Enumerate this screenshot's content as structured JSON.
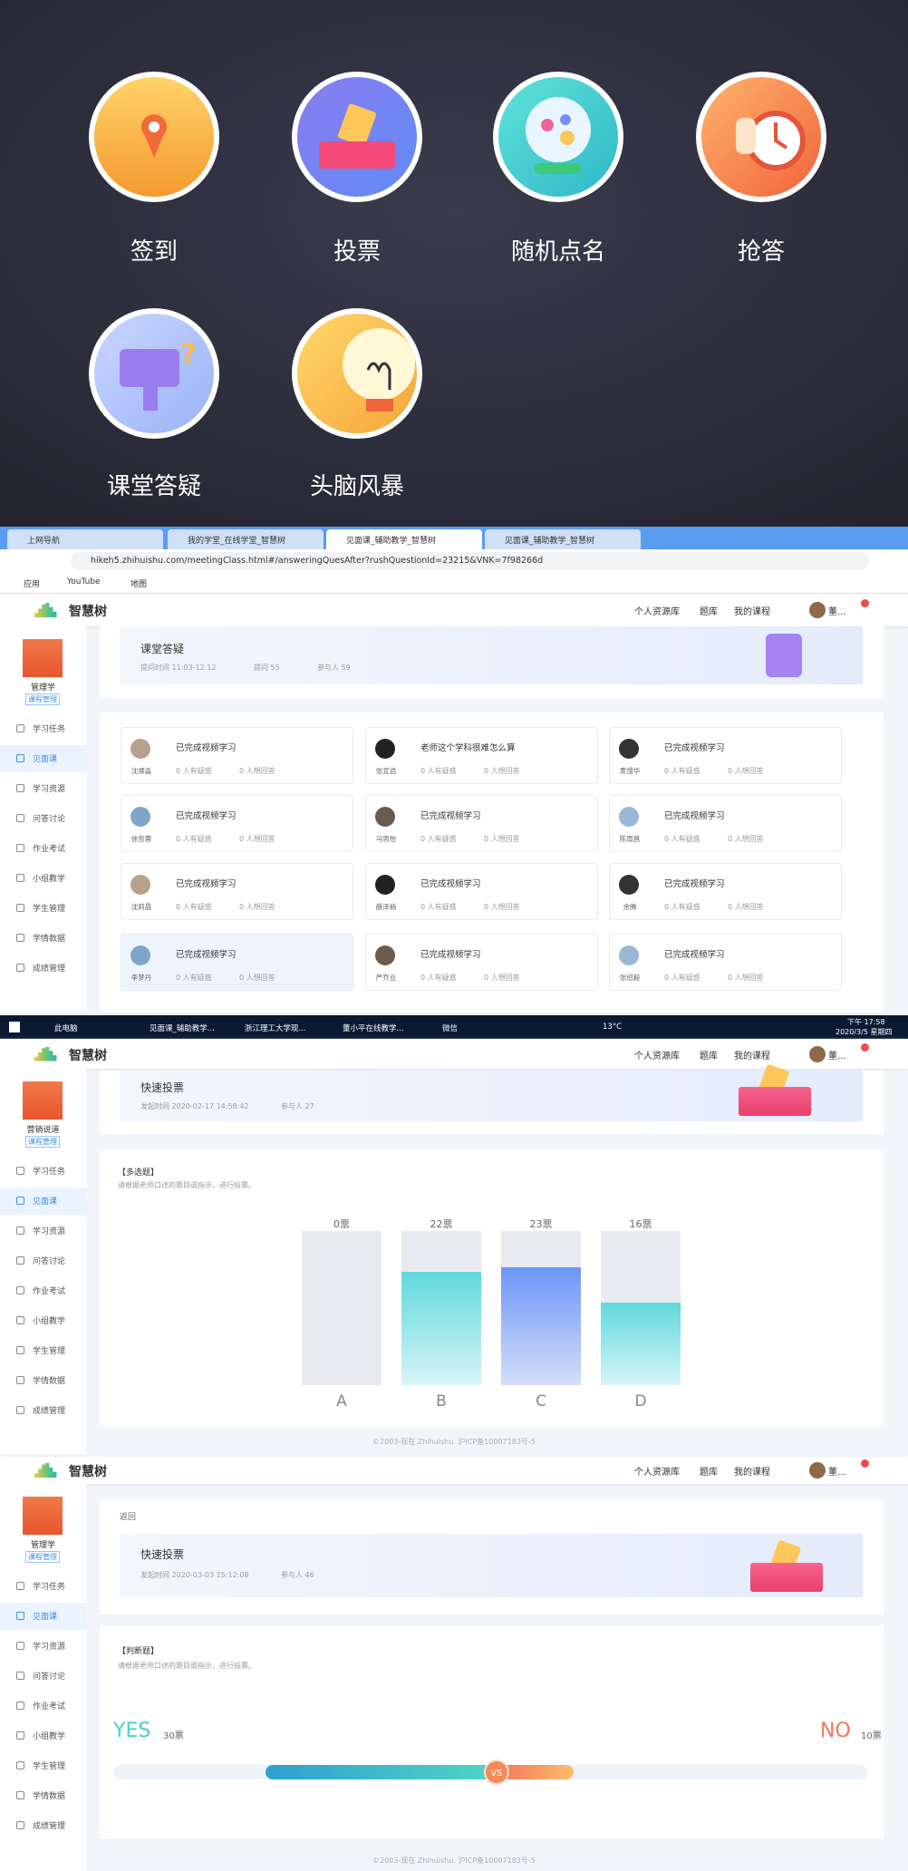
{
  "launcher": {
    "items": [
      "签到",
      "投票",
      "随机点名",
      "抢答",
      "课堂答疑",
      "头脑风暴"
    ]
  },
  "browser": {
    "tabs": [
      "上网导航",
      "我的学堂_在线学堂_智慧树",
      "见面课_辅助教学_智慧树",
      "见面课_辅助教学_智慧树"
    ],
    "url": "hikeh5.zhihuishu.com/meetingClass.html#/answeringQuesAfter?rushQuestionId=23215&VNK=7f98266d",
    "bookmarks": [
      "应用",
      "YouTube",
      "地图"
    ]
  },
  "header": {
    "logo": "智慧树",
    "nav": [
      "个人资源库",
      "题库",
      "我的课程"
    ],
    "user": "董..."
  },
  "sidebar_menu": [
    "学习任务",
    "见面课",
    "学习资源",
    "问答讨论",
    "作业考试",
    "小组教学",
    "学生管理",
    "学情数据",
    "成绩管理"
  ],
  "qa": {
    "course": "管理学",
    "tag": "课程管理",
    "title": "课堂答疑",
    "time": "提问时间   11:03-12:12",
    "asks": "提问 55",
    "people": "参与人 59",
    "stats": [
      "0 人有疑惑",
      "0 人想回答"
    ],
    "cards": [
      {
        "text": "已完成视频学习",
        "name": "沈顺淼"
      },
      {
        "text": "老师这个学科很难怎么算",
        "name": "张宣逍"
      },
      {
        "text": "已完成视频学习",
        "name": "黄馒华"
      },
      {
        "text": "已完成视频学习",
        "name": "徐哲蓉"
      },
      {
        "text": "已完成视频学习",
        "name": "马思怡"
      },
      {
        "text": "已完成视频学习",
        "name": "陈周昌"
      },
      {
        "text": "已完成视频学习",
        "name": "沈莉晨"
      },
      {
        "text": "已完成视频学习",
        "name": "薛泽楠"
      },
      {
        "text": "已完成视频学习",
        "name": "余腾"
      },
      {
        "text": "已完成视频学习",
        "name": "李梦丹"
      },
      {
        "text": "已完成视频学习",
        "name": "严乔业"
      },
      {
        "text": "已完成视频学习",
        "name": "张绍毅"
      }
    ]
  },
  "taskbar": {
    "items": [
      "此电脑",
      "见面课_辅助教学...",
      "浙江理工大学现...",
      "董小平在线教学...",
      "微信"
    ],
    "weather": "13°C",
    "time": "下午 17:58",
    "date": "2020/3/5 星期四"
  },
  "vote1": {
    "course": "营销说道",
    "tag": "课程管理",
    "title": "快速投票",
    "time": "发起时间   2020-02-17 14:58:42",
    "people": "参与人  27",
    "qtype": "【多选题】",
    "instruction": "请根据老师口述的题目或指示，进行投票。",
    "chart": {
      "type": "bar",
      "categories": [
        "A",
        "B",
        "C",
        "D"
      ],
      "values": [
        0,
        22,
        23,
        16
      ],
      "value_labels": [
        "0票",
        "22票",
        "23票",
        "16票"
      ],
      "ylim": [
        0,
        30
      ]
    },
    "footer": "©2003-现在 Zhihuishu. 沪ICP备10007183号-5"
  },
  "vote2": {
    "course": "管理学",
    "tag": "课程管理",
    "back": "返回",
    "title": "快速投票",
    "time": "发起时间   2020-03-03 15:12:08",
    "people": "参与人  46",
    "qtype": "【判断题】",
    "instruction": "请根据老师口述的题目或指示，进行投票。",
    "yes": {
      "label": "YES",
      "value": 30,
      "value_label": "30票"
    },
    "no": {
      "label": "NO",
      "value": 10,
      "value_label": "10票"
    },
    "vs": "VS",
    "footer": "©2003-现在 Zhihuishu. 沪ICP备10007183号-5"
  }
}
